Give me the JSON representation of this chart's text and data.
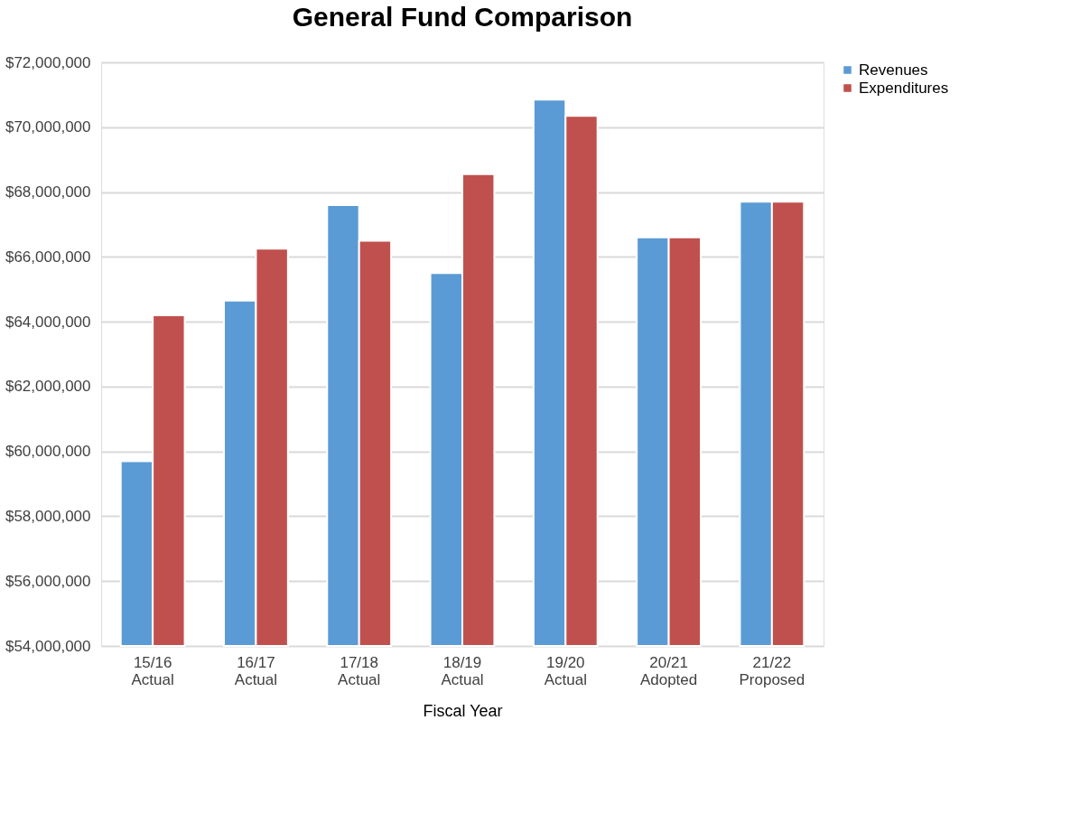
{
  "chart_data": {
    "type": "bar",
    "title": "General Fund Comparison",
    "xlabel": "Fiscal Year",
    "categories": [
      "15/16 Actual",
      "16/17 Actual",
      "17/18 Actual",
      "18/19 Actual",
      "19/20 Actual",
      "20/21 Adopted",
      "21/22 Proposed"
    ],
    "series": [
      {
        "name": "Revenues",
        "color": "#5b9bd5",
        "values": [
          59700000,
          64650000,
          67600000,
          65500000,
          70850000,
          66600000,
          67700000
        ]
      },
      {
        "name": "Expenditures",
        "color": "#c0504d",
        "values": [
          64200000,
          66250000,
          66500000,
          68550000,
          70350000,
          66600000,
          67700000
        ]
      }
    ],
    "ylim": [
      54000000,
      72000000
    ],
    "yticks": [
      {
        "value": 54000000,
        "label": "$54,000,000"
      },
      {
        "value": 56000000,
        "label": "$56,000,000"
      },
      {
        "value": 58000000,
        "label": "$58,000,000"
      },
      {
        "value": 60000000,
        "label": "$60,000,000"
      },
      {
        "value": 62000000,
        "label": "$62,000,000"
      },
      {
        "value": 64000000,
        "label": "$64,000,000"
      },
      {
        "value": 66000000,
        "label": "$66,000,000"
      },
      {
        "value": 68000000,
        "label": "$68,000,000"
      },
      {
        "value": 70000000,
        "label": "$70,000,000"
      },
      {
        "value": 72000000,
        "label": "$72,000,000"
      }
    ],
    "grid": "y",
    "legend": "right"
  }
}
